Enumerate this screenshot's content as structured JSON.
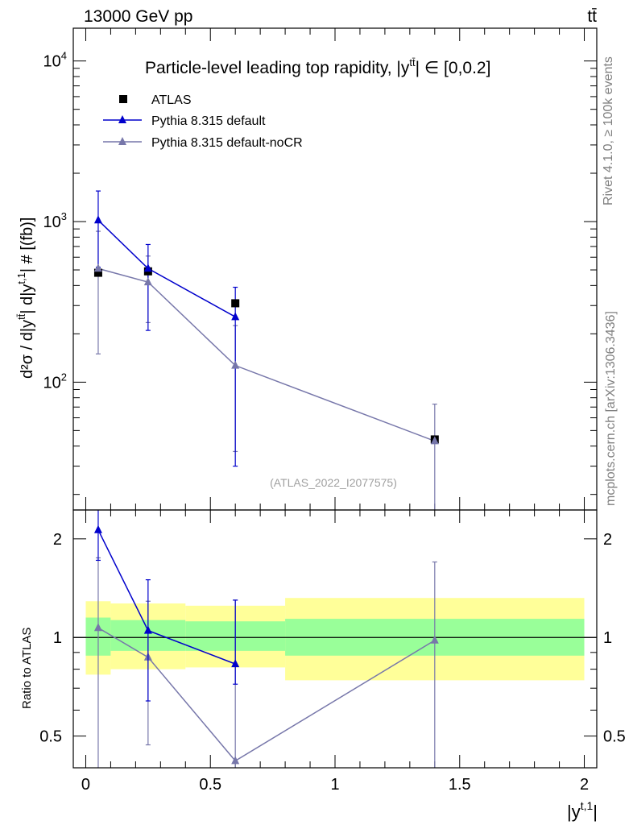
{
  "header": {
    "left": "13000 GeV pp",
    "right": "tt̄"
  },
  "side": {
    "rivet": "Rivet 4.1.0, ≥ 100k events",
    "mcplots": "mcplots.cern.ch [arXiv:1306.3436]"
  },
  "main_panel": {
    "title_prefix": "Particle-level leading top rapidity, |y",
    "title_sup": "tt̄",
    "title_suffix": "| ∈ [0,0.2]",
    "ylabel_core": "d²σ / d|y",
    "ylabel_sup1": "tt̄",
    "ylabel_mid": "| d|y",
    "ylabel_sup2": "t,1",
    "ylabel_end": "| # [(fb)]",
    "analysis": "(ATLAS_2022_I2077575)",
    "yticks": [
      {
        "base": "10",
        "exp": "2",
        "value": 100
      },
      {
        "base": "10",
        "exp": "3",
        "value": 1000
      },
      {
        "base": "10",
        "exp": "4",
        "value": 10000
      }
    ]
  },
  "ratio_panel": {
    "ylabel": "Ratio to ATLAS",
    "yticks": [
      "0.5",
      "1",
      "2"
    ]
  },
  "xaxis": {
    "label": "|y",
    "label_sup": "t,1",
    "label_end": "|",
    "ticks": [
      "0",
      "0.5",
      "1",
      "1.5",
      "2"
    ]
  },
  "chart_data": {
    "type": "scatter",
    "title": "Particle-level leading top rapidity, |y^tt̄| ∈ [0,0.2]",
    "xlabel": "|y^t,1|",
    "ylabel": "d²σ / d|y^tt̄| d|y^t,1| # [(fb)]",
    "xlim": [
      -0.05,
      2.05
    ],
    "ylim": [
      16,
      16000
    ],
    "yscale": "log",
    "ratio_ylim": [
      0.4,
      2.45
    ],
    "legend_position": "top-left",
    "bins": [
      {
        "lo": 0.0,
        "hi": 0.1,
        "x": 0.05
      },
      {
        "lo": 0.1,
        "hi": 0.4,
        "x": 0.25
      },
      {
        "lo": 0.4,
        "hi": 0.8,
        "x": 0.6
      },
      {
        "lo": 0.8,
        "hi": 2.0,
        "x": 1.4
      }
    ],
    "series": [
      {
        "name": "ATLAS",
        "marker": "square",
        "color": "#000000",
        "x": [
          0.05,
          0.25,
          0.6,
          1.4
        ],
        "values": [
          480,
          490,
          310,
          44
        ],
        "band_stat": [
          [
            0.88,
            1.15
          ],
          [
            0.91,
            1.13
          ],
          [
            0.91,
            1.12
          ],
          [
            0.88,
            1.14
          ]
        ],
        "band_total": [
          [
            0.77,
            1.29
          ],
          [
            0.8,
            1.27
          ],
          [
            0.81,
            1.25
          ],
          [
            0.74,
            1.32
          ]
        ]
      },
      {
        "name": "Pythia 8.315 default",
        "marker": "triangle",
        "color": "#0000cc",
        "x": [
          0.05,
          0.25,
          0.6
        ],
        "values": [
          1020,
          510,
          255
        ],
        "err_lo": [
          520,
          210,
          30
        ],
        "err_hi": [
          1550,
          720,
          390
        ],
        "ratio": [
          2.13,
          1.05,
          0.83
        ],
        "ratio_err_lo": [
          1.72,
          0.64,
          0.72
        ],
        "ratio_err_hi": [
          2.45,
          1.5,
          1.3
        ]
      },
      {
        "name": "Pythia 8.315 default-noCR",
        "marker": "triangle",
        "color": "#7777aa",
        "x": [
          0.05,
          0.25,
          0.6,
          1.4
        ],
        "values": [
          510,
          420,
          127,
          43
        ],
        "err_lo": [
          150,
          235,
          37,
          16
        ],
        "err_hi": [
          870,
          610,
          225,
          73
        ],
        "ratio": [
          1.07,
          0.87,
          0.42,
          0.98
        ],
        "ratio_err_lo": [
          0.4,
          0.47,
          0.4,
          0.4
        ],
        "ratio_err_hi": [
          1.75,
          1.29,
          1.3,
          1.7
        ]
      }
    ]
  }
}
